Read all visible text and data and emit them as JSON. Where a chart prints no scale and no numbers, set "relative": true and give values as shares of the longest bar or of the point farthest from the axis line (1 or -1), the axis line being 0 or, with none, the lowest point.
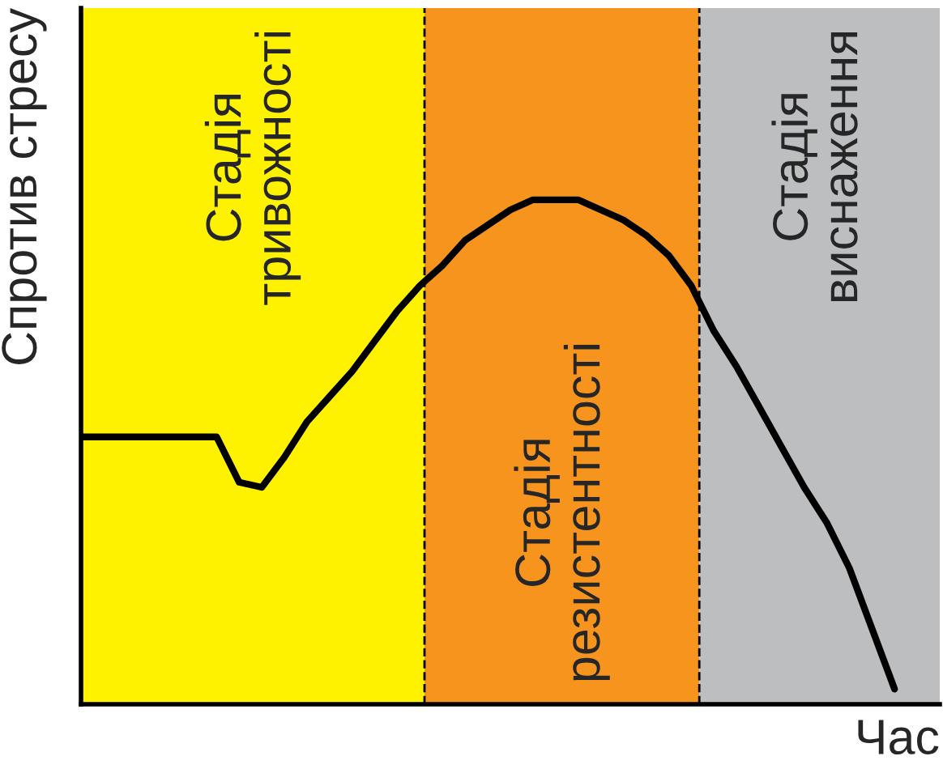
{
  "chart_data": {
    "type": "line",
    "relative": true,
    "xlabel": "Час",
    "ylabel": "Спротив стресу",
    "categories": [
      null,
      null,
      null,
      null,
      null,
      null,
      null,
      null,
      null,
      null,
      null,
      null,
      null,
      null,
      null,
      null,
      null,
      null,
      null,
      null,
      null,
      null,
      null,
      null,
      null,
      null,
      null,
      null,
      null,
      null,
      null,
      null,
      null,
      null,
      null,
      null,
      null,
      null,
      null
    ],
    "series": [
      {
        "color": "#000000",
        "values": [
          0.53,
          0.53,
          0.53,
          0.53,
          0.53,
          0.53,
          0.53,
          0.44,
          0.43,
          0.49,
          0.56,
          0.61,
          0.66,
          0.72,
          0.78,
          0.83,
          0.87,
          0.92,
          0.95,
          0.98,
          1.0,
          1.0,
          1.0,
          0.98,
          0.96,
          0.93,
          0.89,
          0.83,
          0.74,
          0.67,
          0.59,
          0.51,
          0.43,
          0.36,
          0.27,
          0.15,
          0.03,
          null,
          null
        ]
      }
    ],
    "annotations": [
      "Стадія\nтривожності",
      "Стадія\nрезистентності",
      "Стадія\nвиснаження"
    ],
    "legend": false,
    "marker": "none",
    "line_style": "solid"
  }
}
